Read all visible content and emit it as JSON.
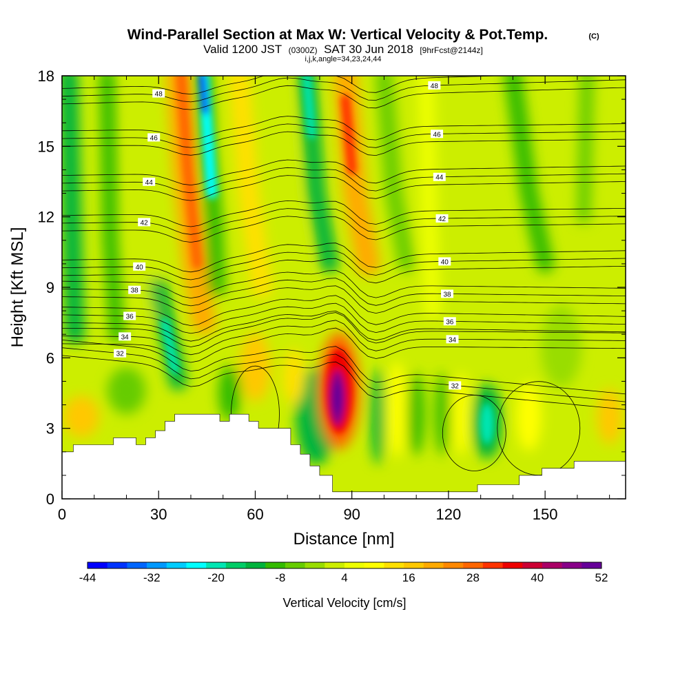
{
  "chart_data": {
    "type": "heatmap",
    "title": "Wind-Parallel Section at Max W: Vertical Velocity & Pot.Temp.",
    "title_mark": "(C)",
    "subtitle_parts": [
      "Valid 1200 JST",
      "(0300Z)",
      "SAT 30 Jun 2018",
      "[9hrFcst@2144z]"
    ],
    "grid_info": "i,j,k,angle=34,23,24,44",
    "xlabel": "Distance [nm]",
    "ylabel": "Height [Kft MSL]",
    "xlim": [
      0,
      175
    ],
    "ylim": [
      0,
      18
    ],
    "x_ticks": [
      "0",
      "30",
      "60",
      "90",
      "120",
      "150"
    ],
    "y_ticks": [
      "0",
      "3",
      "6",
      "9",
      "12",
      "15",
      "18"
    ],
    "colorbar": {
      "title": "Vertical Velocity [cm/s]",
      "tick_labels": [
        "-44",
        "-32",
        "-20",
        "-8",
        "4",
        "16",
        "28",
        "40",
        "52"
      ],
      "colors": [
        "#0000ff",
        "#0033ff",
        "#0066ff",
        "#0099ff",
        "#00ccff",
        "#00ffff",
        "#00e6b3",
        "#00cc66",
        "#00b33c",
        "#33bb00",
        "#66cc00",
        "#99dd00",
        "#ccee00",
        "#eeff00",
        "#ffff00",
        "#ffe000",
        "#ffc800",
        "#ffaa00",
        "#ff8800",
        "#ff6600",
        "#ff3300",
        "#ee0000",
        "#cc0033",
        "#aa0066",
        "#880088",
        "#660099"
      ]
    },
    "velocity_features": [
      {
        "x": 36,
        "y": 13,
        "w": 40,
        "band": true,
        "color": "#ff6600"
      },
      {
        "x": 44,
        "y": 16.5,
        "w": -42,
        "color": "#0000ff"
      },
      {
        "x": 45,
        "y": 13.5,
        "w": -28,
        "color": "#00ffff"
      },
      {
        "x": 75,
        "y": 16.5,
        "w": -20,
        "color": "#00e6b3"
      },
      {
        "x": 88,
        "y": 15,
        "w": 30,
        "color": "#ff3300"
      },
      {
        "x": 86,
        "y": 4.2,
        "w": 52,
        "color": "#660099"
      },
      {
        "x": 79,
        "y": 3.5,
        "w": -12,
        "color": "#00b33c"
      },
      {
        "x": 132,
        "y": 3.2,
        "w": -16,
        "color": "#00e6b3"
      }
    ],
    "theta_contours": [
      {
        "label": "32",
        "y_left": 6.1,
        "y_right": 3.8
      },
      {
        "label": "34",
        "y_left": 6.6,
        "y_right": 6.4
      },
      {
        "label": "36",
        "y_left": 7.5,
        "y_right": 7.1
      },
      {
        "label": "38",
        "y_left": 8.6,
        "y_right": 8.3
      },
      {
        "label": "40",
        "y_left": 9.5,
        "y_right": 9.9
      },
      {
        "label": "42",
        "y_left": 11.4,
        "y_right": 11.7
      },
      {
        "label": "44",
        "y_left": 13.1,
        "y_right": 13.5
      },
      {
        "label": "46",
        "y_left": 15.0,
        "y_right": 15.3
      },
      {
        "label": "48",
        "y_left": 16.8,
        "y_right": 17.5
      }
    ],
    "terrain_profile": [
      [
        0,
        2.0
      ],
      [
        3.5,
        2.0
      ],
      [
        3.5,
        2.3
      ],
      [
        16,
        2.3
      ],
      [
        16,
        2.6
      ],
      [
        23,
        2.6
      ],
      [
        23,
        2.3
      ],
      [
        26,
        2.3
      ],
      [
        26,
        2.6
      ],
      [
        29,
        2.6
      ],
      [
        29,
        2.9
      ],
      [
        32,
        2.9
      ],
      [
        32,
        3.3
      ],
      [
        35,
        3.3
      ],
      [
        35,
        3.6
      ],
      [
        49,
        3.6
      ],
      [
        49,
        3.3
      ],
      [
        52,
        3.3
      ],
      [
        52,
        3.6
      ],
      [
        58,
        3.6
      ],
      [
        58,
        3.3
      ],
      [
        61,
        3.3
      ],
      [
        61,
        3.0
      ],
      [
        71,
        3.0
      ],
      [
        71,
        2.3
      ],
      [
        74,
        2.3
      ],
      [
        74,
        1.9
      ],
      [
        77,
        1.9
      ],
      [
        77,
        1.4
      ],
      [
        80,
        1.4
      ],
      [
        80,
        1.0
      ],
      [
        84,
        1.0
      ],
      [
        84,
        0.3
      ],
      [
        129,
        0.3
      ],
      [
        129,
        0.6
      ],
      [
        142,
        0.6
      ],
      [
        142,
        1.0
      ],
      [
        149,
        1.0
      ],
      [
        149,
        1.3
      ],
      [
        159,
        1.3
      ],
      [
        159,
        1.6
      ],
      [
        175,
        1.6
      ]
    ]
  }
}
